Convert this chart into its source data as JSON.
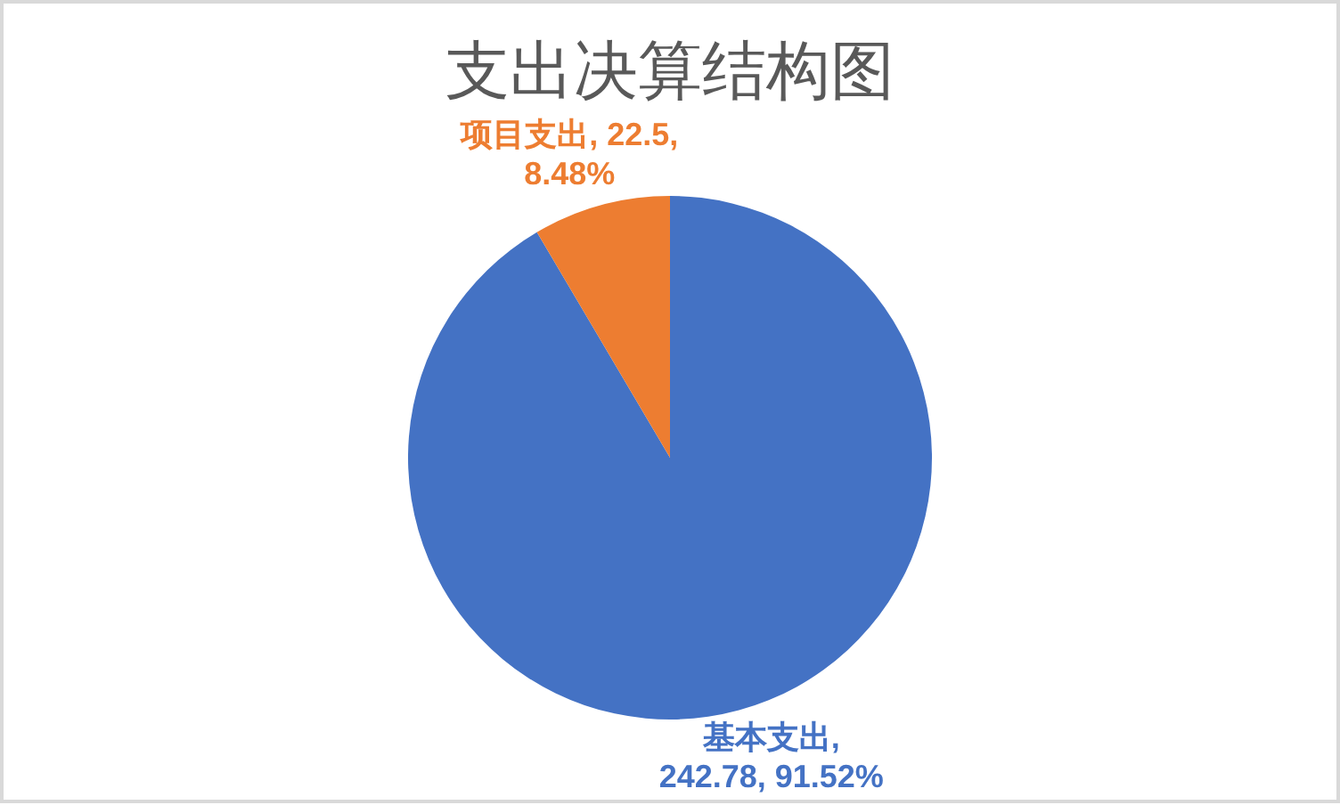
{
  "chart_data": {
    "type": "pie",
    "title": "支出决算结构图",
    "categories": [
      "基本支出",
      "项目支出"
    ],
    "values": [
      242.78,
      22.5
    ],
    "colors": [
      "#4472c4",
      "#ed7d31"
    ],
    "value_labels": [
      ", 242.78, 91.52%",
      ", 22.5, 8.48%"
    ]
  }
}
